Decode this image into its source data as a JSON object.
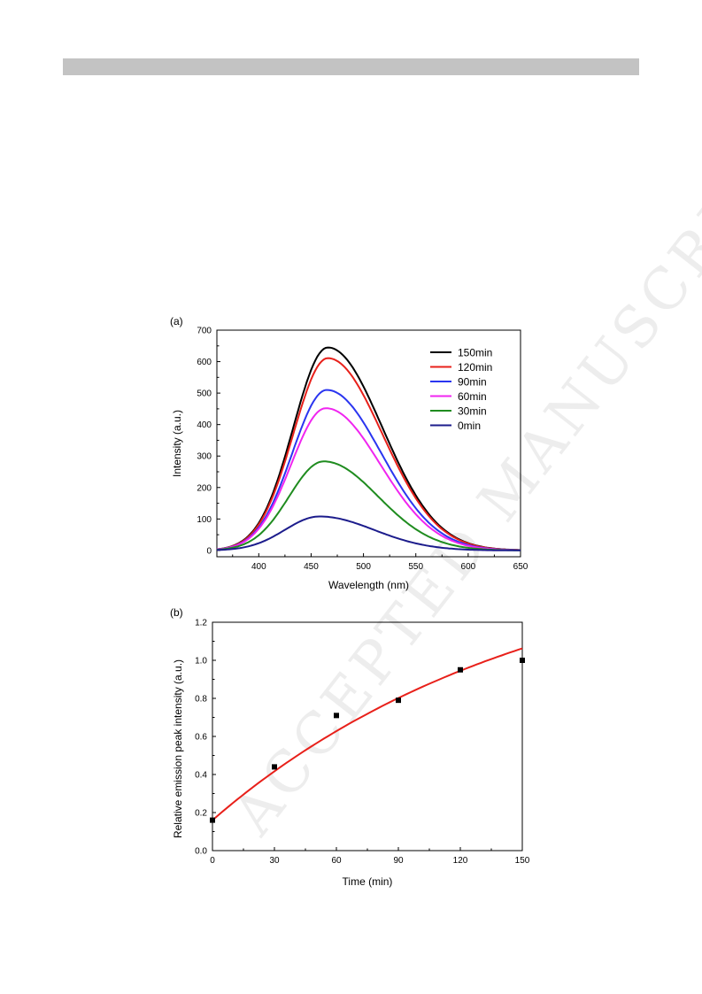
{
  "watermark": "ACCEPTED MANUSCRIPT",
  "chart_data": [
    {
      "type": "line",
      "panel_label": "(a)",
      "xlabel": "Wavelength (nm)",
      "ylabel": "Intensity (a.u.)",
      "xlim": [
        360,
        650
      ],
      "ylim": [
        -20,
        700
      ],
      "xticks": [
        400,
        450,
        500,
        550,
        600,
        650
      ],
      "yticks": [
        0,
        100,
        200,
        300,
        400,
        500,
        600,
        700
      ],
      "legend_position": "top-right",
      "grid": false,
      "series": [
        {
          "name": "150min",
          "color": "#000000",
          "peak_x": 466,
          "peak_y": 645
        },
        {
          "name": "120min",
          "color": "#e8201a",
          "peak_x": 466,
          "peak_y": 611
        },
        {
          "name": "90min",
          "color": "#2a35f0",
          "peak_x": 465,
          "peak_y": 510
        },
        {
          "name": "60min",
          "color": "#f025f0",
          "peak_x": 464,
          "peak_y": 452
        },
        {
          "name": "30min",
          "color": "#1f8c1f",
          "peak_x": 462,
          "peak_y": 283
        },
        {
          "name": "0min",
          "color": "#1c1c8c",
          "peak_x": 458,
          "peak_y": 108
        }
      ]
    },
    {
      "type": "scatter",
      "panel_label": "(b)",
      "xlabel": "Time (min)",
      "ylabel": "Relative emission peak intensity (a.u.)",
      "xlim": [
        0,
        150
      ],
      "ylim": [
        0.0,
        1.2
      ],
      "xticks": [
        0,
        30,
        60,
        90,
        120,
        150
      ],
      "yticks": [
        0.0,
        0.2,
        0.4,
        0.6,
        0.8,
        1.0,
        1.2
      ],
      "grid": false,
      "points": {
        "x": [
          0,
          30,
          60,
          90,
          120,
          150
        ],
        "y": [
          0.16,
          0.44,
          0.71,
          0.79,
          0.95,
          1.0
        ]
      },
      "fit": {
        "color": "#e8201a",
        "a": 1.61,
        "b": 1.45,
        "tau": 154
      }
    }
  ]
}
